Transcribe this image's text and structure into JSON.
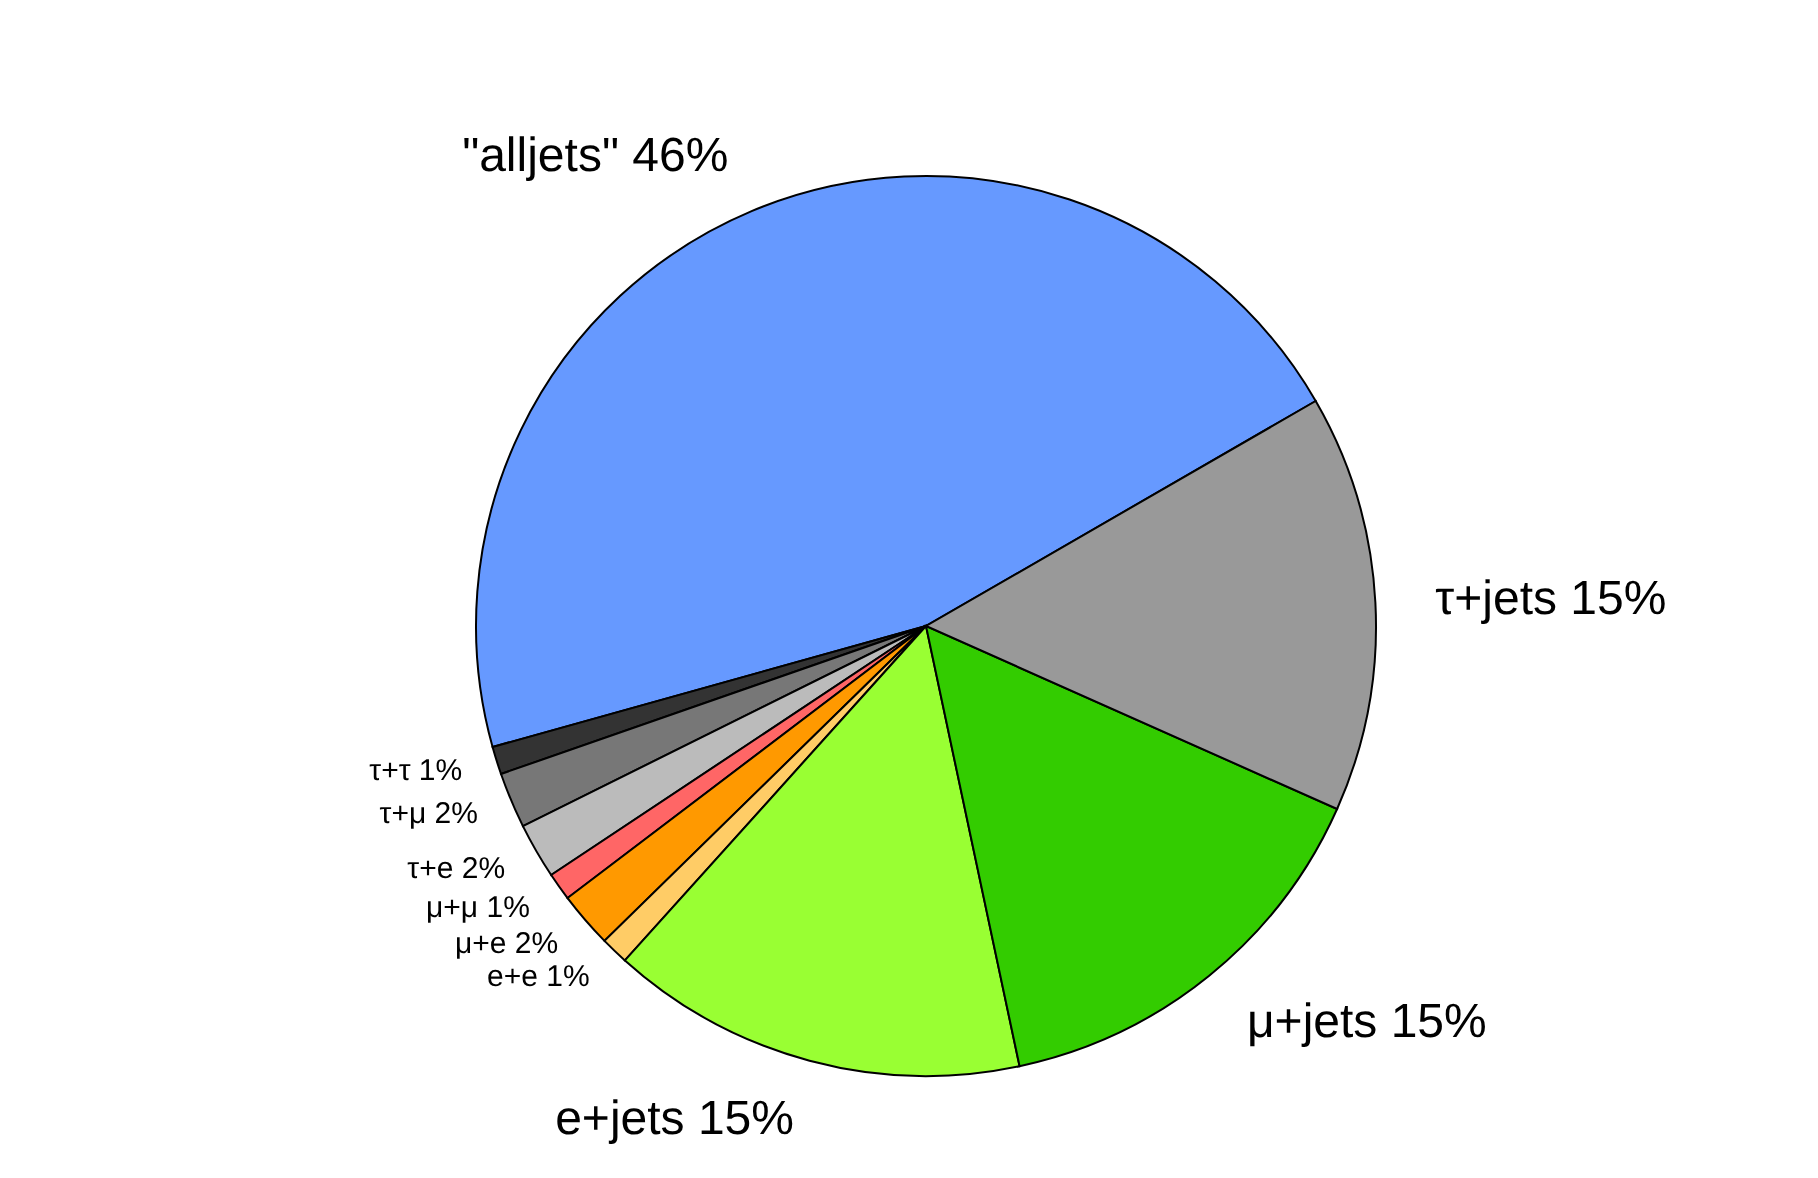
{
  "chart_data": {
    "type": "pie",
    "categories": [
      "\"alljets\"",
      "τ+τ",
      "τ+μ",
      "τ+e",
      "μ+μ",
      "μ+e",
      "e+e",
      "e+jets",
      "μ+jets",
      "τ+jets"
    ],
    "values": [
      46,
      1,
      2,
      2,
      1,
      2,
      1,
      15,
      15,
      15
    ],
    "value_labels": [
      "46%",
      "1%",
      "2%",
      "2%",
      "1%",
      "2%",
      "1%",
      "15%",
      "15%",
      "15%"
    ],
    "colors": [
      "#6699ff",
      "#333333",
      "#777777",
      "#bbbbbb",
      "#ff6666",
      "#ff9900",
      "#ffcc66",
      "#99ff33",
      "#33cc00",
      "#999999"
    ],
    "legend": false
  }
}
